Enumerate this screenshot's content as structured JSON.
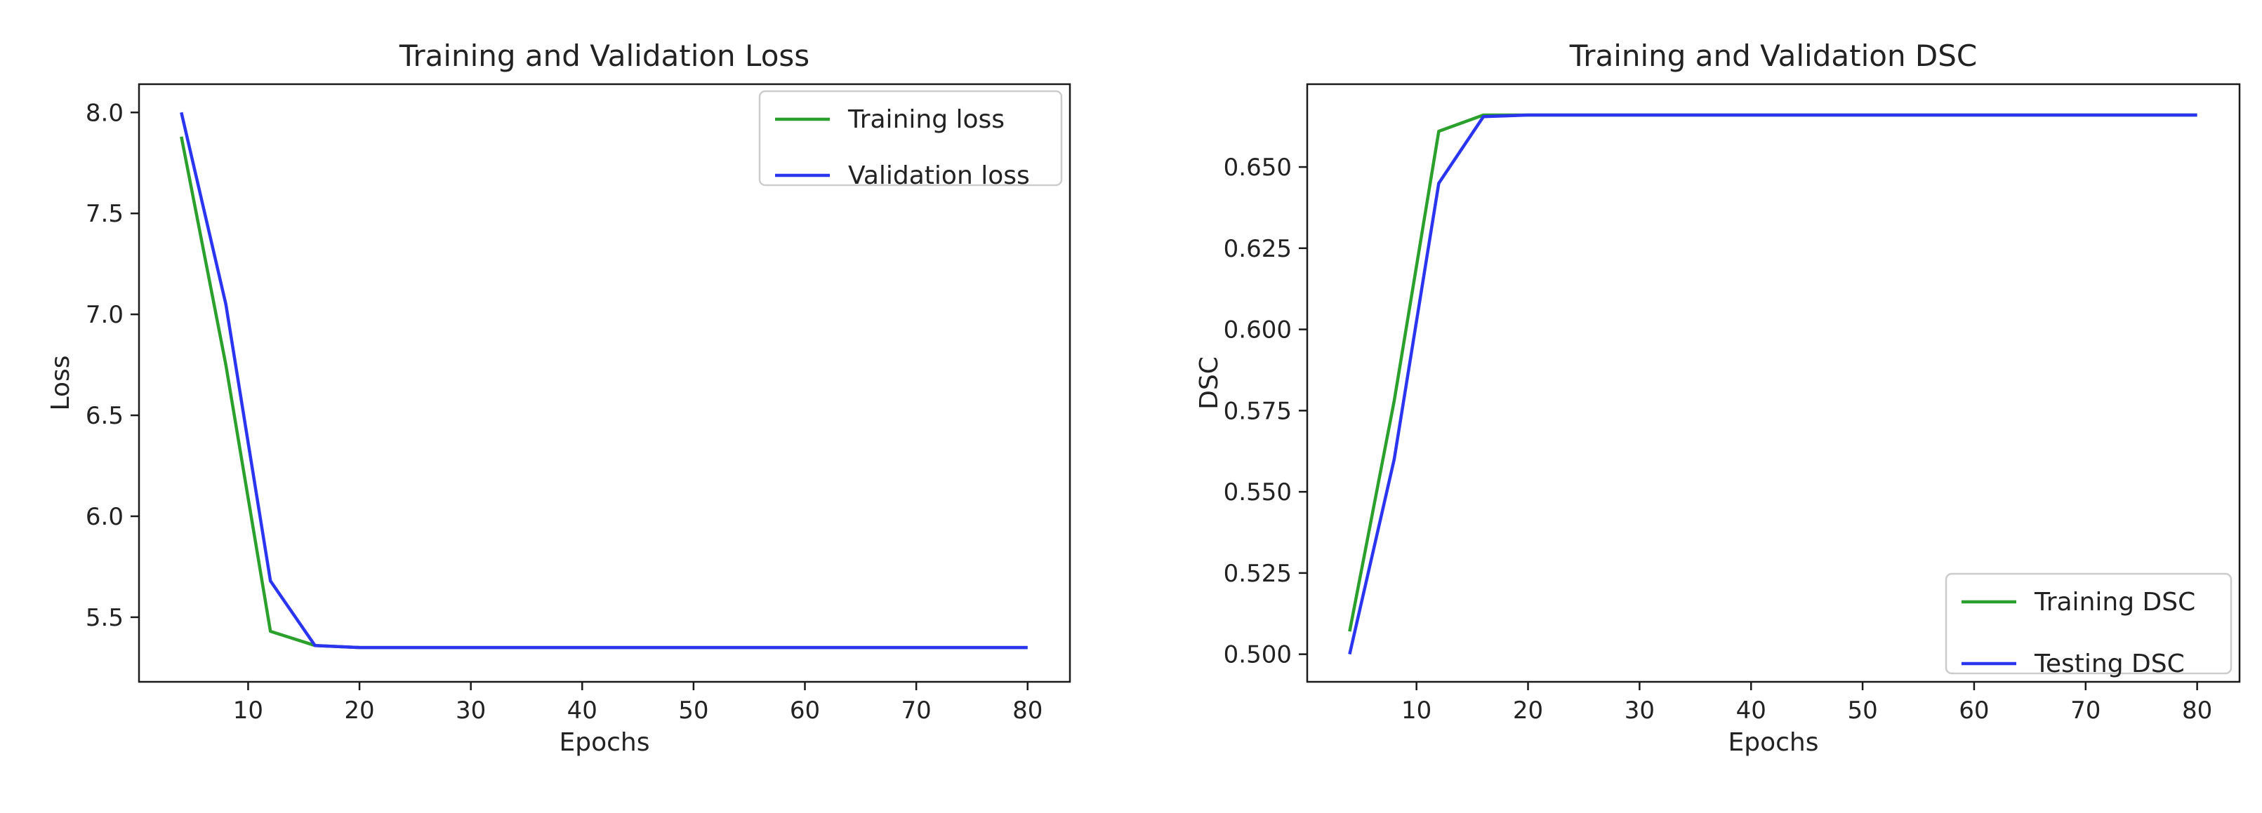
{
  "chart_data": [
    {
      "type": "line",
      "title": "Training and Validation Loss",
      "xlabel": "Epochs",
      "ylabel": "Loss",
      "xlim": [
        0.2,
        83.8
      ],
      "ylim": [
        5.18,
        8.14
      ],
      "xticks": [
        10,
        20,
        30,
        40,
        50,
        60,
        70,
        80
      ],
      "xtick_labels": [
        "10",
        "20",
        "30",
        "40",
        "50",
        "60",
        "70",
        "80"
      ],
      "yticks": [
        5.5,
        6.0,
        6.5,
        7.0,
        7.5,
        8.0
      ],
      "ytick_labels": [
        "5.5",
        "6.0",
        "6.5",
        "7.0",
        "7.5",
        "8.0"
      ],
      "legend_loc": "upper right",
      "x": [
        4,
        8,
        12,
        16,
        20,
        24,
        28,
        32,
        36,
        40,
        44,
        48,
        52,
        56,
        60,
        64,
        68,
        72,
        76,
        80
      ],
      "series": [
        {
          "name": "Training loss",
          "color": "#2ca02c",
          "values": [
            7.88,
            6.75,
            5.43,
            5.36,
            5.35,
            5.35,
            5.35,
            5.35,
            5.35,
            5.35,
            5.35,
            5.35,
            5.35,
            5.35,
            5.35,
            5.35,
            5.35,
            5.35,
            5.35,
            5.35
          ]
        },
        {
          "name": "Validation loss",
          "color": "#2b35f0",
          "values": [
            8.0,
            7.05,
            5.68,
            5.36,
            5.35,
            5.35,
            5.35,
            5.35,
            5.35,
            5.35,
            5.35,
            5.35,
            5.35,
            5.35,
            5.35,
            5.35,
            5.35,
            5.35,
            5.35,
            5.35
          ]
        }
      ]
    },
    {
      "type": "line",
      "title": "Training and Validation DSC",
      "xlabel": "Epochs",
      "ylabel": "DSC",
      "xlim": [
        0.2,
        83.8
      ],
      "ylim": [
        0.4915,
        0.6755
      ],
      "xticks": [
        10,
        20,
        30,
        40,
        50,
        60,
        70,
        80
      ],
      "xtick_labels": [
        "10",
        "20",
        "30",
        "40",
        "50",
        "60",
        "70",
        "80"
      ],
      "yticks": [
        0.5,
        0.525,
        0.55,
        0.575,
        0.6,
        0.625,
        0.65
      ],
      "ytick_labels": [
        "0.500",
        "0.525",
        "0.550",
        "0.575",
        "0.600",
        "0.625",
        "0.650"
      ],
      "legend_loc": "lower right",
      "x": [
        4,
        8,
        12,
        16,
        20,
        24,
        28,
        32,
        36,
        40,
        44,
        48,
        52,
        56,
        60,
        64,
        68,
        72,
        76,
        80
      ],
      "series": [
        {
          "name": "Training DSC",
          "color": "#2ca02c",
          "values": [
            0.507,
            0.578,
            0.661,
            0.666,
            0.666,
            0.666,
            0.666,
            0.666,
            0.666,
            0.666,
            0.666,
            0.666,
            0.666,
            0.666,
            0.666,
            0.666,
            0.666,
            0.666,
            0.666,
            0.666
          ]
        },
        {
          "name": "Testing DSC",
          "color": "#2b35f0",
          "values": [
            0.5,
            0.56,
            0.645,
            0.6655,
            0.666,
            0.666,
            0.666,
            0.666,
            0.666,
            0.666,
            0.666,
            0.666,
            0.666,
            0.666,
            0.666,
            0.666,
            0.666,
            0.666,
            0.666,
            0.666
          ]
        }
      ]
    }
  ]
}
